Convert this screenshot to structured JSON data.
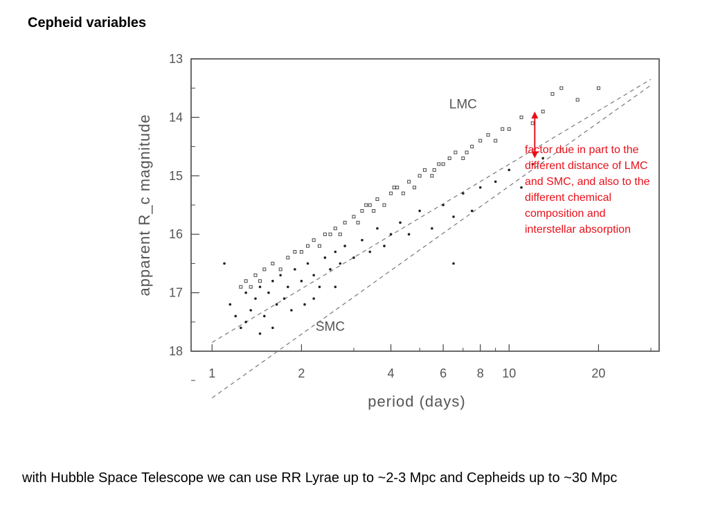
{
  "slide": {
    "title": "Cepheid variables",
    "caption": "with Hubble Space Telescope we can use RR Lyrae up to ~2-3 Mpc and Cepheids up to ~30 Mpc"
  },
  "annotation": {
    "text": "factor due in part to the different distance of LMC and SMC, and also to the different chemical composition and interstellar absorption",
    "color": "#e8101a"
  },
  "chart_data": {
    "type": "scatter",
    "title": "",
    "xlabel": "period (days)",
    "ylabel": "apparent R_c magnitude",
    "x_scale": "log",
    "xlim": [
      0.85,
      32
    ],
    "ylim": [
      18,
      13
    ],
    "y_inverted": true,
    "x_ticks": [
      1,
      2,
      4,
      6,
      8,
      10,
      20
    ],
    "x_tick_labels": [
      "1",
      "2",
      "4",
      "6",
      "8",
      "10",
      "20"
    ],
    "y_ticks": [
      13,
      14,
      15,
      16,
      17,
      18
    ],
    "y_tick_labels": [
      "13",
      "14",
      "15",
      "16",
      "17",
      "18"
    ],
    "grid": false,
    "series": [
      {
        "name": "LMC",
        "marker": "open",
        "x": [
          1.25,
          1.3,
          1.35,
          1.4,
          1.45,
          1.5,
          1.6,
          1.7,
          1.8,
          1.9,
          2.0,
          2.1,
          2.2,
          2.3,
          2.5,
          2.6,
          2.7,
          2.8,
          3.0,
          3.1,
          3.2,
          3.4,
          3.5,
          3.6,
          3.8,
          4.0,
          4.2,
          4.4,
          4.6,
          4.8,
          5.0,
          5.2,
          5.5,
          5.8,
          6.0,
          6.3,
          6.6,
          7.0,
          7.5,
          8.0,
          8.5,
          9.0,
          10.0,
          11.0,
          12.0,
          13.0,
          14.0,
          15.0,
          17.0,
          20.0,
          2.4,
          3.3,
          4.1,
          5.6,
          7.2,
          9.5
        ],
        "y": [
          16.9,
          16.8,
          16.9,
          16.7,
          16.8,
          16.6,
          16.5,
          16.6,
          16.4,
          16.3,
          16.3,
          16.2,
          16.1,
          16.2,
          16.0,
          15.9,
          16.0,
          15.8,
          15.7,
          15.8,
          15.6,
          15.5,
          15.6,
          15.4,
          15.5,
          15.3,
          15.2,
          15.3,
          15.1,
          15.2,
          15.0,
          14.9,
          15.0,
          14.8,
          14.8,
          14.7,
          14.6,
          14.7,
          14.5,
          14.4,
          14.3,
          14.4,
          14.2,
          14.0,
          14.1,
          13.9,
          13.6,
          13.5,
          13.7,
          13.5,
          16.0,
          15.5,
          15.2,
          14.9,
          14.6,
          14.2
        ]
      },
      {
        "name": "SMC",
        "marker": "filled",
        "x": [
          1.1,
          1.15,
          1.2,
          1.25,
          1.3,
          1.35,
          1.4,
          1.45,
          1.5,
          1.55,
          1.6,
          1.65,
          1.7,
          1.75,
          1.8,
          1.85,
          1.9,
          2.0,
          2.05,
          2.1,
          2.2,
          2.3,
          2.4,
          2.5,
          2.6,
          2.7,
          2.8,
          3.0,
          3.2,
          3.4,
          3.6,
          3.8,
          4.0,
          4.3,
          4.6,
          5.0,
          5.5,
          6.0,
          6.5,
          7.0,
          7.5,
          8.0,
          9.0,
          10.0,
          11.0,
          12.0,
          13.0,
          6.5,
          1.45,
          1.3,
          1.6,
          2.2,
          2.6
        ],
        "y": [
          16.5,
          17.2,
          17.4,
          17.6,
          17.0,
          17.3,
          17.1,
          16.9,
          17.4,
          17.0,
          16.8,
          17.2,
          16.7,
          17.1,
          16.9,
          17.3,
          16.6,
          16.8,
          17.2,
          16.5,
          16.7,
          16.9,
          16.4,
          16.6,
          16.3,
          16.5,
          16.2,
          16.4,
          16.1,
          16.3,
          15.9,
          16.2,
          16.0,
          15.8,
          16.0,
          15.6,
          15.9,
          15.5,
          15.7,
          15.3,
          15.6,
          15.2,
          15.1,
          14.9,
          15.2,
          14.8,
          14.7,
          16.5,
          17.7,
          17.5,
          17.6,
          17.1,
          16.9
        ]
      }
    ],
    "fit_lines": [
      {
        "name": "LMC",
        "x": [
          1.0,
          30.0
        ],
        "y": [
          17.85,
          13.35
        ]
      },
      {
        "name": "SMC",
        "x": [
          1.0,
          30.0
        ],
        "y": [
          18.8,
          13.45
        ]
      }
    ],
    "labels": [
      {
        "text": "LMC",
        "x": 7.0,
        "y": 13.85
      },
      {
        "text": "SMC",
        "x": 2.5,
        "y": 17.65
      }
    ],
    "arrow": {
      "x": 12.2,
      "y_from": 13.9,
      "y_to": 14.7,
      "color": "#e8101a"
    }
  }
}
